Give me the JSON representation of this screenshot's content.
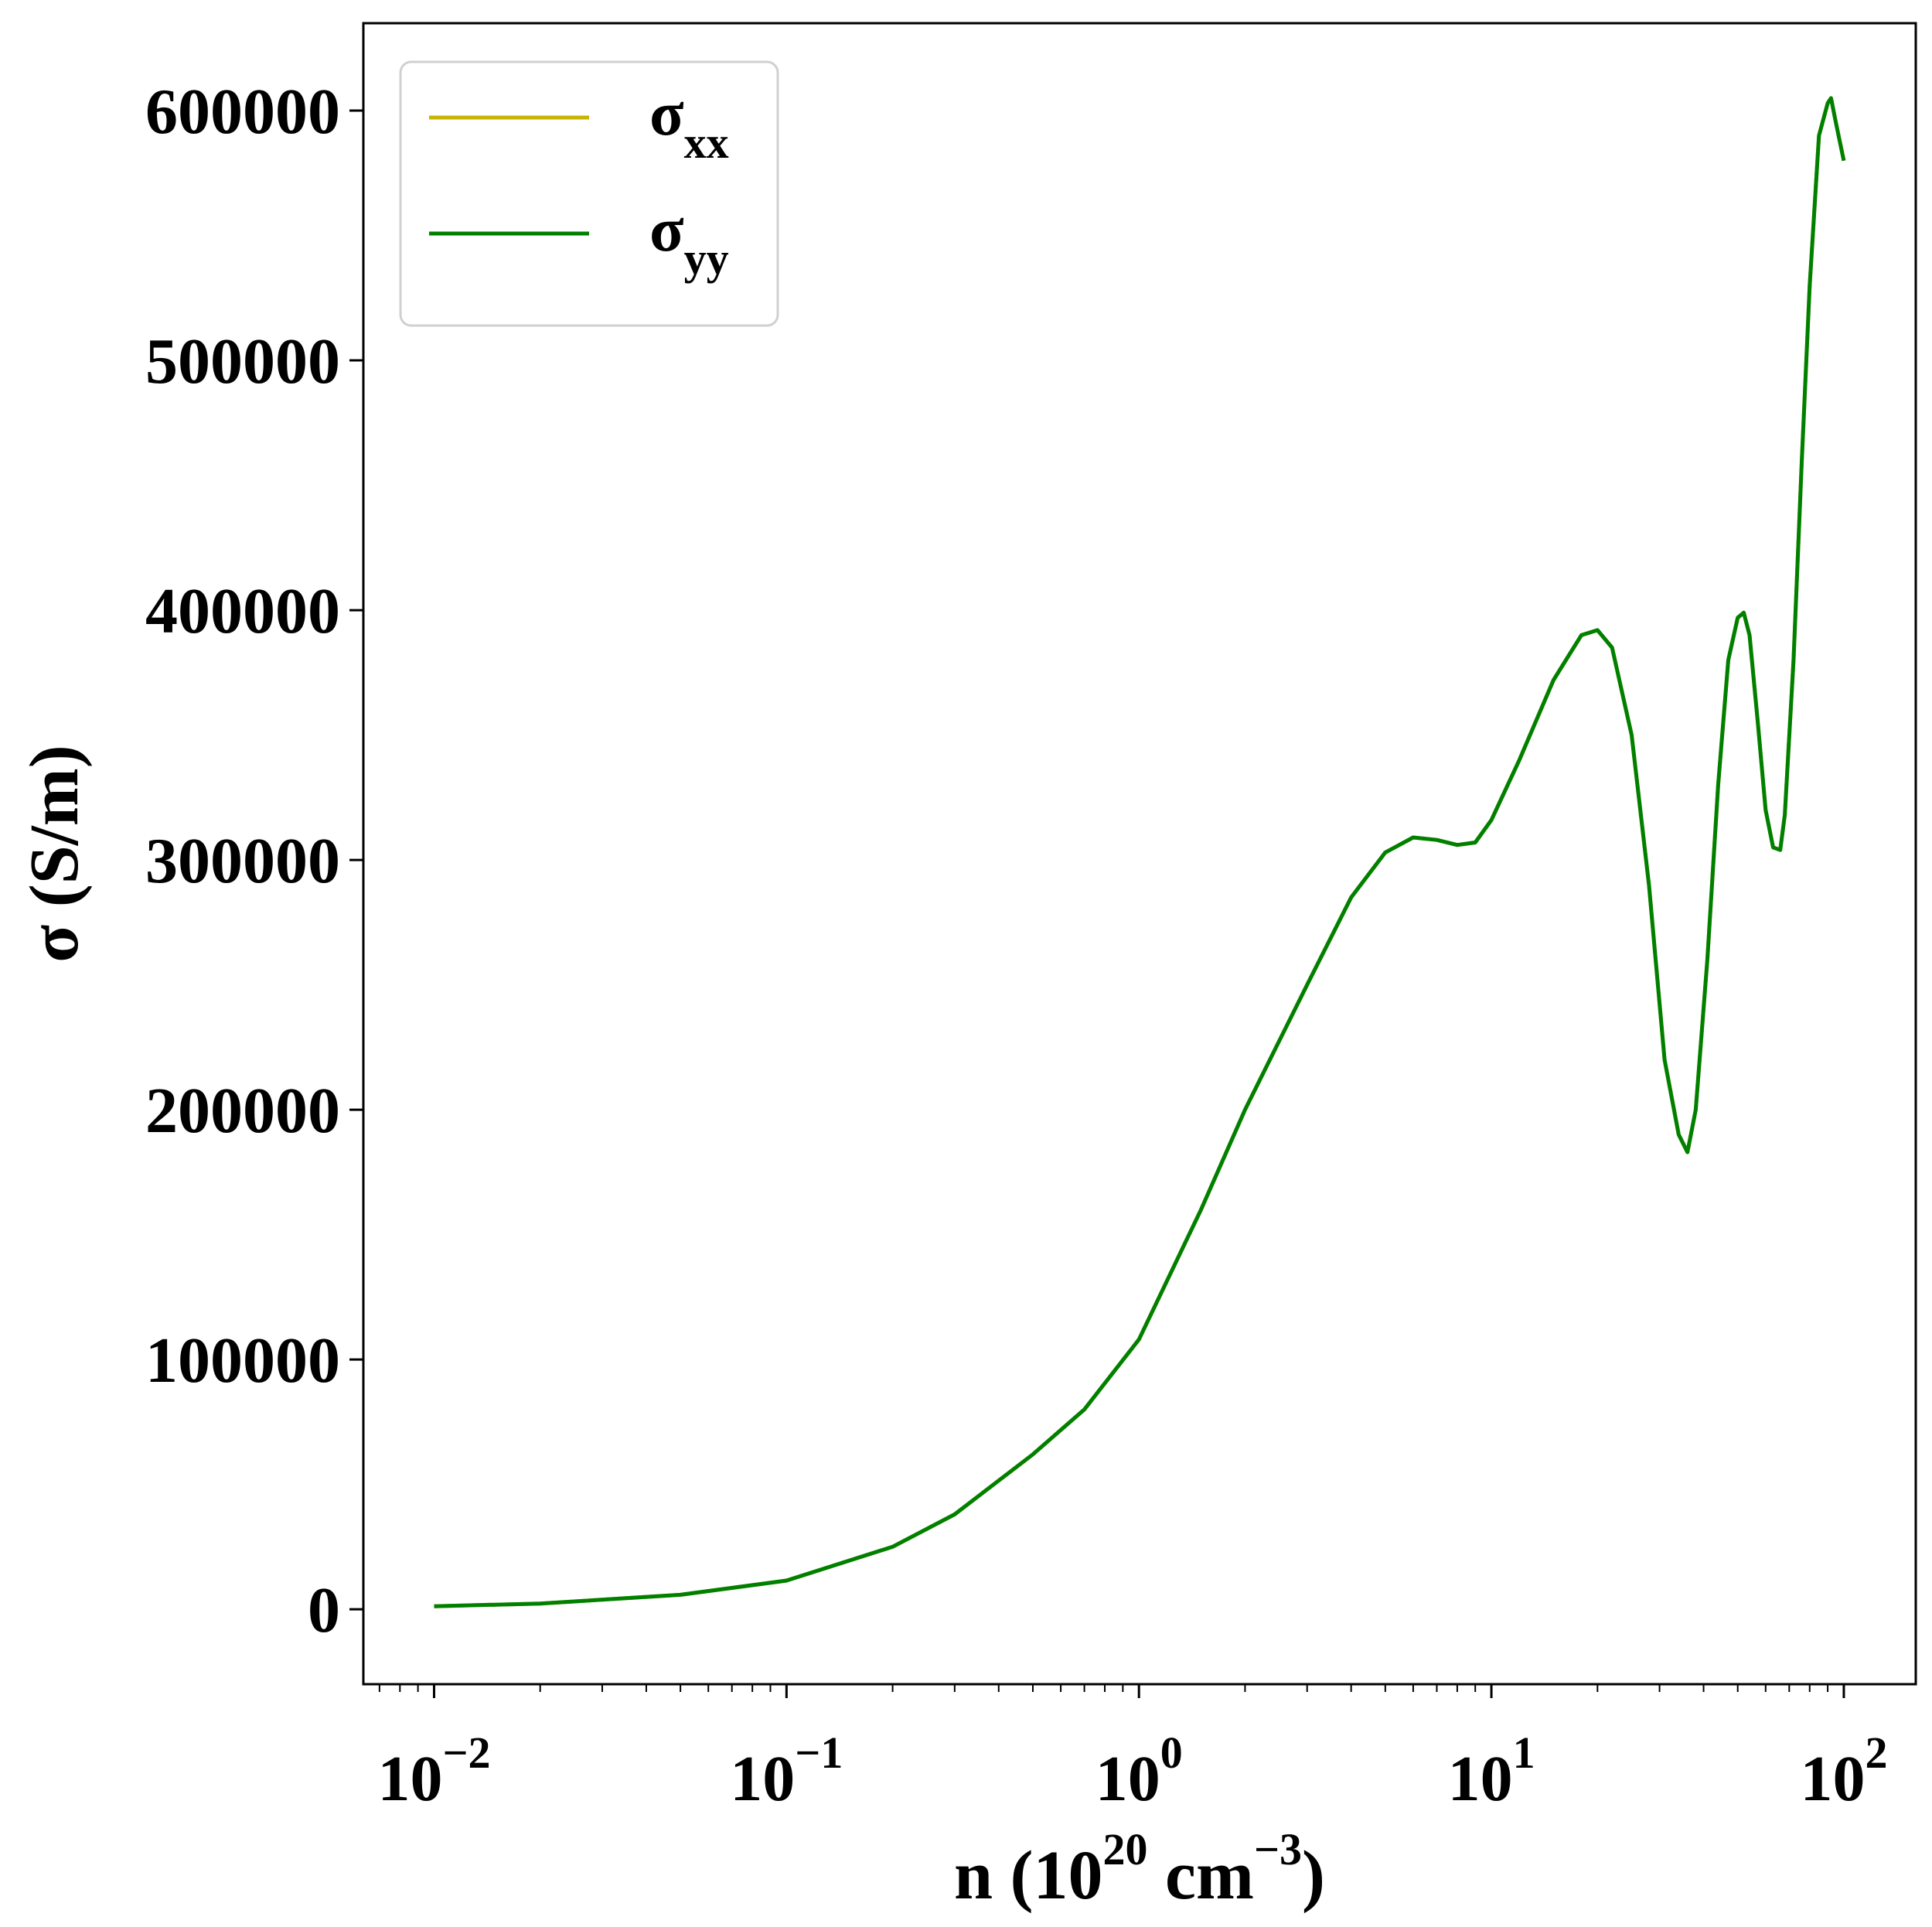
{
  "chart_data": {
    "type": "line",
    "xscale": "log",
    "xlim": [
      0.0063,
      160
    ],
    "ylim": [
      -30000,
      635000
    ],
    "grid": false,
    "legend_position": "upper-left",
    "xlabel": {
      "prefix": "n (10",
      "exp": "20",
      "mid": " cm",
      "exp2": "−3",
      "suffix": ")"
    },
    "ylabel": "σ (S/m)",
    "x_ticks": [
      {
        "value": 0.01,
        "base": "10",
        "exp": "−2"
      },
      {
        "value": 0.1,
        "base": "10",
        "exp": "−1"
      },
      {
        "value": 1,
        "base": "10",
        "exp": "0"
      },
      {
        "value": 10,
        "base": "10",
        "exp": "1"
      },
      {
        "value": 100,
        "base": "10",
        "exp": "2"
      }
    ],
    "y_ticks": [
      {
        "value": 0,
        "label": "0"
      },
      {
        "value": 100000,
        "label": "100000"
      },
      {
        "value": 200000,
        "label": "200000"
      },
      {
        "value": 300000,
        "label": "300000"
      },
      {
        "value": 400000,
        "label": "400000"
      },
      {
        "value": 500000,
        "label": "500000"
      },
      {
        "value": 600000,
        "label": "600000"
      }
    ],
    "series": [
      {
        "name": "σ",
        "sub": "xx",
        "color": "#c8b400",
        "x": [
          0.01,
          0.02,
          0.05,
          0.1,
          0.2,
          0.3,
          0.5,
          0.7,
          1.0,
          1.5,
          2.0,
          3.0,
          4.0,
          5.0,
          6.0,
          7.0,
          8.0,
          9.0,
          10,
          12,
          15,
          18,
          20,
          22,
          25,
          28,
          31,
          34,
          36,
          38,
          41,
          44,
          47,
          50,
          52,
          54,
          57,
          60,
          63,
          66,
          68,
          72,
          76,
          80,
          85,
          90,
          92,
          95,
          100
        ],
        "y": [
          1200,
          2300,
          5800,
          11500,
          25000,
          38000,
          62000,
          80000,
          108000,
          160000,
          200000,
          250000,
          285000,
          303000,
          309000,
          308000,
          306000,
          307000,
          316000,
          340000,
          372000,
          390000,
          392000,
          385000,
          350000,
          290000,
          220000,
          190000,
          183000,
          200000,
          260000,
          330000,
          380000,
          397000,
          399000,
          390000,
          355000,
          320000,
          305000,
          304000,
          318000,
          380000,
          460000,
          530000,
          590000,
          603000,
          605000,
          595000,
          580000
        ]
      },
      {
        "name": "σ",
        "sub": "yy",
        "color": "#008000",
        "x": [
          0.01,
          0.02,
          0.05,
          0.1,
          0.2,
          0.3,
          0.5,
          0.7,
          1.0,
          1.5,
          2.0,
          3.0,
          4.0,
          5.0,
          6.0,
          7.0,
          8.0,
          9.0,
          10,
          12,
          15,
          18,
          20,
          22,
          25,
          28,
          31,
          34,
          36,
          38,
          41,
          44,
          47,
          50,
          52,
          54,
          57,
          60,
          63,
          66,
          68,
          72,
          76,
          80,
          85,
          90,
          92,
          95,
          100
        ],
        "y": [
          1200,
          2300,
          5800,
          11500,
          25000,
          38000,
          62000,
          80000,
          108000,
          160000,
          200000,
          250000,
          285000,
          303000,
          309000,
          308000,
          306000,
          307000,
          316000,
          340000,
          372000,
          390000,
          392000,
          385000,
          350000,
          290000,
          220000,
          190000,
          183000,
          200000,
          260000,
          330000,
          380000,
          397000,
          399000,
          390000,
          355000,
          320000,
          305000,
          304000,
          318000,
          380000,
          460000,
          530000,
          590000,
          603000,
          605000,
          595000,
          580000
        ]
      }
    ]
  }
}
